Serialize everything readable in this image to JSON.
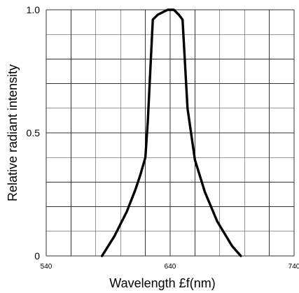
{
  "chart_data": {
    "type": "line",
    "title": "",
    "xlabel": "Wavelength £f(nm)",
    "ylabel": "Relative radiant intensity",
    "xlim": [
      540,
      740
    ],
    "ylim": [
      0,
      1.0
    ],
    "grid": true,
    "x_ticks": [
      "540",
      "640",
      "740"
    ],
    "y_ticks": [
      "0",
      "0.5",
      "1.0"
    ],
    "series": [
      {
        "color": "#000000",
        "x": [
          585,
          595,
          605,
          612,
          616,
          620,
          622,
          626,
          630,
          634,
          638,
          640,
          643,
          647,
          650,
          654,
          660,
          668,
          678,
          690,
          697
        ],
        "y": [
          0.0,
          0.08,
          0.18,
          0.27,
          0.33,
          0.4,
          0.55,
          0.96,
          0.98,
          0.99,
          1.0,
          1.0,
          1.0,
          0.98,
          0.96,
          0.6,
          0.39,
          0.26,
          0.14,
          0.04,
          0.0
        ]
      }
    ]
  }
}
